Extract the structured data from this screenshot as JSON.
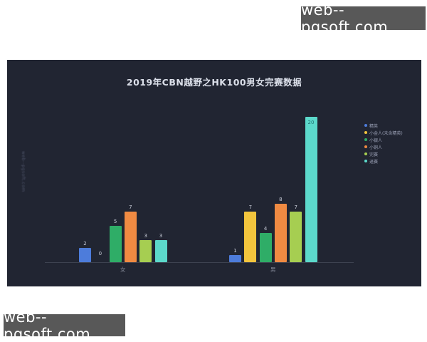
{
  "watermarks": {
    "top_right": "web--pgsoft.com",
    "bottom_left": "web--pgsoft.com",
    "vertical_left": "web--pgsoft.com"
  },
  "chart": {
    "background": "#212532",
    "title_color": "#dce0ea",
    "axis_color": "#3d4250",
    "value_label_color": "#c9cdd9",
    "category_label_color": "#828796",
    "legend_text_color": "#9aa0b5"
  },
  "chart_data": {
    "type": "bar",
    "title": "2019年CBN越野之HK100男女完赛数据",
    "categories": [
      "女",
      "男"
    ],
    "series": [
      {
        "name": "精英",
        "color": "#4d7cdb",
        "values": [
          2,
          1
        ]
      },
      {
        "name": "小金人(未含精英)",
        "color": "#f3c53d",
        "values": [
          0,
          7
        ]
      },
      {
        "name": "小银人",
        "color": "#2fad67",
        "values": [
          5,
          4
        ]
      },
      {
        "name": "小铜人",
        "color": "#f08a42",
        "values": [
          7,
          8
        ]
      },
      {
        "name": "完赛",
        "color": "#a6ce51",
        "values": [
          3,
          7
        ]
      },
      {
        "name": "退赛",
        "color": "#5cd9cb",
        "values": [
          3,
          20
        ]
      }
    ],
    "ylim": [
      0,
      21
    ],
    "legend_position": "right",
    "grid": false,
    "value_labels": true
  }
}
